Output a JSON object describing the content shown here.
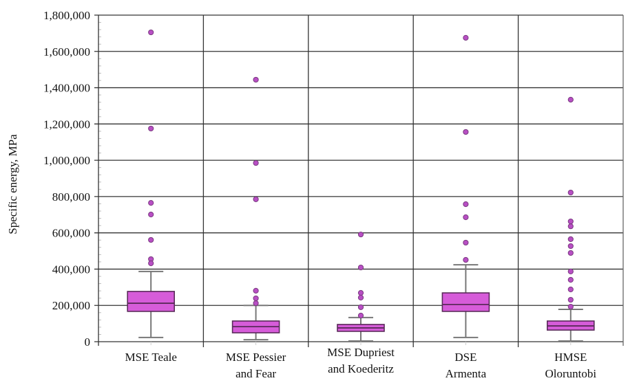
{
  "chart_data": {
    "type": "box",
    "title": "",
    "xlabel": "",
    "ylabel": "Specific energy, MPa",
    "ylim": [
      0,
      1800000
    ],
    "yticks": [
      0,
      200000,
      400000,
      600000,
      800000,
      1000000,
      1200000,
      1400000,
      1600000,
      1800000
    ],
    "ytick_labels": [
      "0",
      "200,000",
      "400,000",
      "600,000",
      "800,000",
      "1,000,000",
      "1,200,000",
      "1,400,000",
      "1,600,000",
      "1,800,000"
    ],
    "grid": true,
    "box_color": "#d65cd9",
    "box_edge_color": "#5a2a5a",
    "outlier_color": "#b84fc4",
    "categories": [
      [
        "MSE Teale"
      ],
      [
        "MSE Pessier",
        "and Fear"
      ],
      [
        "MSE Dupriest",
        "and Koederitz"
      ],
      [
        "DSE",
        "Armenta"
      ],
      [
        "HMSE",
        "Oloruntobi"
      ]
    ],
    "series": [
      {
        "name": "MSE Teale",
        "whisker_low": 23000,
        "q1": 167000,
        "median": 212000,
        "q3": 277000,
        "whisker_high": 387000,
        "outliers": [
          1705000,
          1175000,
          765000,
          701000,
          561000,
          455000,
          432000
        ]
      },
      {
        "name": "MSE Pessier and Fear",
        "whisker_low": 11000,
        "q1": 49000,
        "median": 83000,
        "q3": 114000,
        "whisker_high": 200000,
        "outliers": [
          1444000,
          985000,
          785000,
          281000,
          239000,
          212000
        ]
      },
      {
        "name": "MSE Dupriest and Koederitz",
        "whisker_low": 4000,
        "q1": 57000,
        "median": 76000,
        "q3": 95000,
        "whisker_high": 133000,
        "outliers": [
          591000,
          409000,
          269000,
          243000,
          190000,
          144000
        ]
      },
      {
        "name": "DSE Armenta",
        "whisker_low": 23000,
        "q1": 167000,
        "median": 205000,
        "q3": 269000,
        "whisker_high": 424000,
        "outliers": [
          1675000,
          1156000,
          758000,
          686000,
          546000,
          451000
        ]
      },
      {
        "name": "HMSE Oloruntobi",
        "whisker_low": 4000,
        "q1": 64000,
        "median": 87000,
        "q3": 114000,
        "whisker_high": 178000,
        "outliers": [
          1334000,
          822000,
          663000,
          636000,
          565000,
          527000,
          489000,
          387000,
          341000,
          288000,
          231000,
          193000
        ]
      }
    ]
  }
}
